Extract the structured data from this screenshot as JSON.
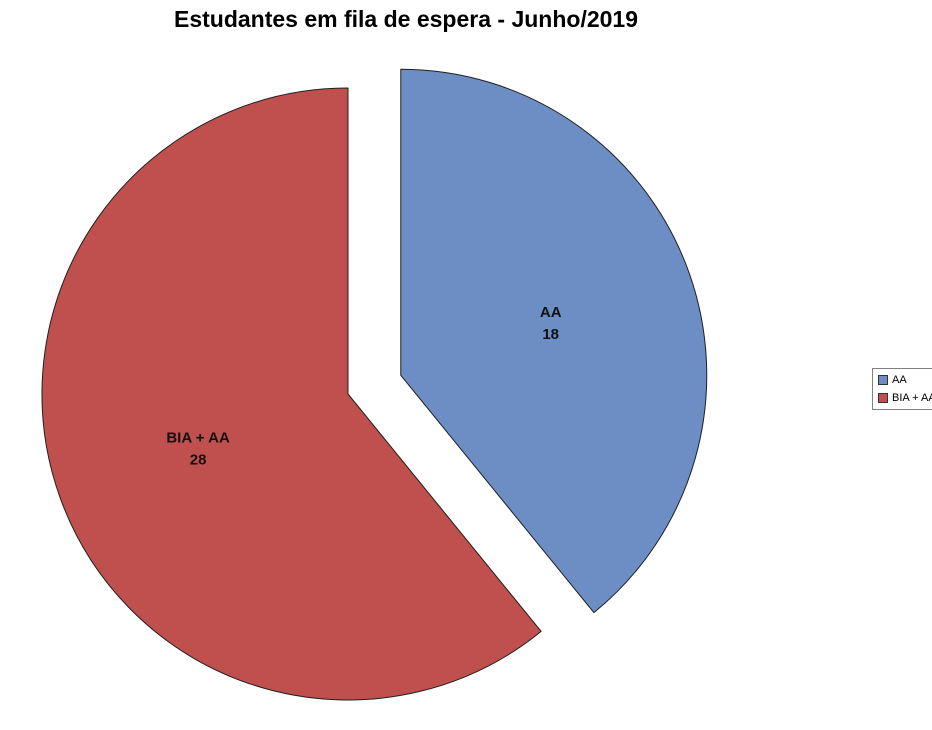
{
  "chart_data": {
    "type": "pie",
    "title": "Estudantes em fila de espera - Junho/2019",
    "categories": [
      "AA",
      "BIA + AA"
    ],
    "values": [
      18,
      28
    ],
    "total": 46,
    "colors": [
      "#6D8EC4",
      "#C0504D"
    ],
    "exploded": [
      true,
      false
    ],
    "start_angle_deg": 0,
    "direction": "clockwise",
    "legend_position": "right",
    "legend_entries": [
      "AA",
      "BIA + AA"
    ],
    "slice_border_color": "#1f1f1f",
    "background_color": "#FFFFFF",
    "label_color": "#111111"
  }
}
